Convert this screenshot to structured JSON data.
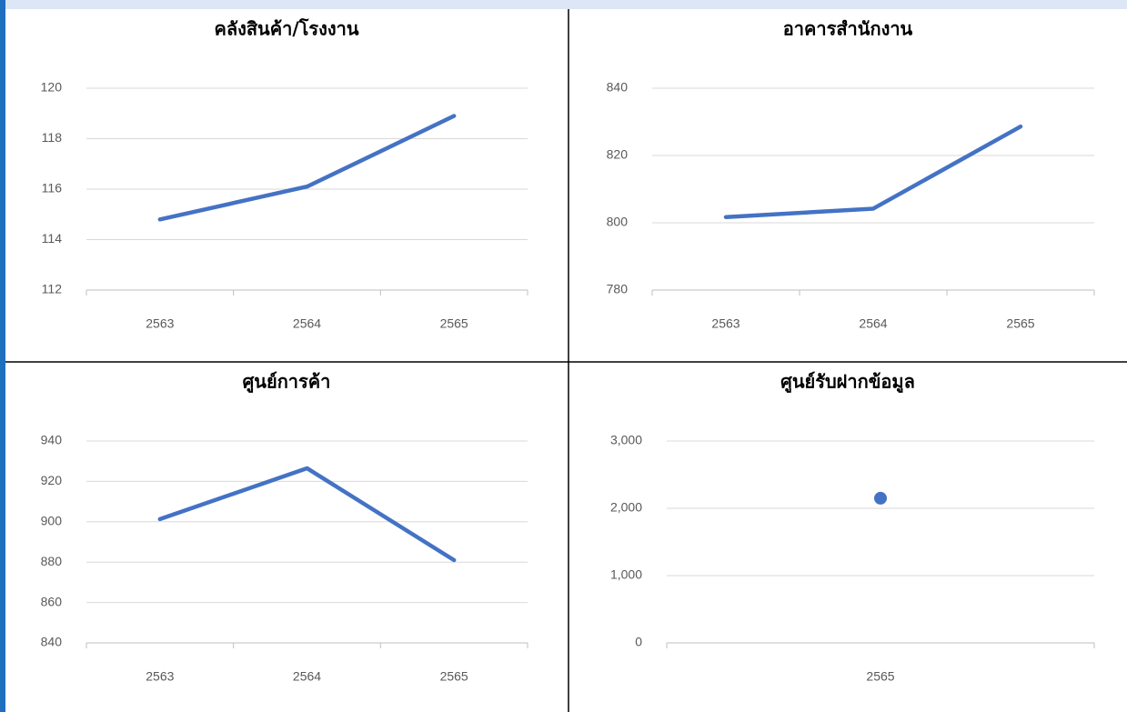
{
  "chart_data": [
    {
      "type": "line",
      "title": "คลังสินค้า/โรงงาน",
      "categories": [
        "2563",
        "2564",
        "2565"
      ],
      "series": [
        {
          "color": "#4472c4",
          "values": [
            114.8,
            116.1,
            118.9
          ]
        }
      ],
      "ylim": [
        112,
        120
      ],
      "yticks": [
        112,
        114,
        116,
        118,
        120
      ],
      "grid": true
    },
    {
      "type": "line",
      "title": "อาคารสำนักงาน",
      "categories": [
        "2563",
        "2564",
        "2565"
      ],
      "series": [
        {
          "color": "#4472c4",
          "values": [
            801.7,
            804.2,
            828.6
          ]
        }
      ],
      "ylim": [
        780,
        840
      ],
      "yticks": [
        780,
        800,
        820,
        840
      ],
      "grid": true
    },
    {
      "type": "line",
      "title": "ศูนย์การค้า",
      "categories": [
        "2563",
        "2564",
        "2565"
      ],
      "series": [
        {
          "color": "#4472c4",
          "values": [
            901.3,
            926.5,
            881
          ]
        }
      ],
      "ylim": [
        840,
        940
      ],
      "yticks": [
        840,
        860,
        880,
        900,
        920,
        940
      ],
      "grid": true
    },
    {
      "type": "line",
      "title": "ศูนย์รับฝากข้อมูล",
      "categories": [
        "2565"
      ],
      "series": [
        {
          "color": "#4472c4",
          "values": [
            2150
          ]
        }
      ],
      "ylim": [
        0,
        3000
      ],
      "yticks": [
        0,
        {
          "value": 1000,
          "label": "1,000"
        },
        {
          "value": 2000,
          "label": "2,000"
        },
        {
          "value": 3000,
          "label": "3,000"
        }
      ],
      "grid": true
    }
  ]
}
